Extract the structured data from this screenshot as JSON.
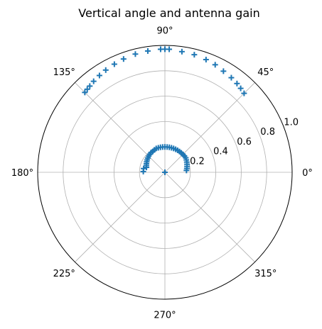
{
  "chart_data": {
    "type": "scatter",
    "projection": "polar",
    "title": "Vertical angle and antenna gain",
    "marker": "plus",
    "color": "#1f77b4",
    "grid": true,
    "angle_unit": "degrees",
    "angle_ticks": [
      "0°",
      "45°",
      "90°",
      "135°",
      "180°",
      "225°",
      "270°",
      "315°"
    ],
    "angle_tick_values": [
      0,
      45,
      90,
      135,
      180,
      225,
      270,
      315
    ],
    "radial_ticks": [
      "0.2",
      "0.4",
      "0.6",
      "0.8",
      "1.0"
    ],
    "radial_tick_values": [
      0.2,
      0.4,
      0.6,
      0.8,
      1.0
    ],
    "rlim": [
      0,
      1.0
    ],
    "series": [
      {
        "points": [
          {
            "theta": 45,
            "r": 0.88
          },
          {
            "theta": 48,
            "r": 0.89
          },
          {
            "theta": 51,
            "r": 0.9
          },
          {
            "theta": 55,
            "r": 0.91
          },
          {
            "theta": 60,
            "r": 0.92
          },
          {
            "theta": 65,
            "r": 0.935
          },
          {
            "theta": 70,
            "r": 0.945
          },
          {
            "theta": 76,
            "r": 0.955
          },
          {
            "theta": 82,
            "r": 0.96
          },
          {
            "theta": 88,
            "r": 0.97
          },
          {
            "theta": 90,
            "r": 0.97
          },
          {
            "theta": 92,
            "r": 0.97
          },
          {
            "theta": 98,
            "r": 0.965
          },
          {
            "theta": 104,
            "r": 0.96
          },
          {
            "theta": 110,
            "r": 0.95
          },
          {
            "theta": 115,
            "r": 0.94
          },
          {
            "theta": 120,
            "r": 0.93
          },
          {
            "theta": 124,
            "r": 0.92
          },
          {
            "theta": 128,
            "r": 0.91
          },
          {
            "theta": 131,
            "r": 0.9
          },
          {
            "theta": 133,
            "r": 0.895
          },
          {
            "theta": 135,
            "r": 0.89
          },
          {
            "theta": 5,
            "r": 0.17
          },
          {
            "theta": 10,
            "r": 0.175
          },
          {
            "theta": 15,
            "r": 0.18
          },
          {
            "theta": 20,
            "r": 0.185
          },
          {
            "theta": 25,
            "r": 0.19
          },
          {
            "theta": 30,
            "r": 0.195
          },
          {
            "theta": 35,
            "r": 0.2
          },
          {
            "theta": 40,
            "r": 0.2
          },
          {
            "theta": 45,
            "r": 0.2
          },
          {
            "theta": 50,
            "r": 0.2
          },
          {
            "theta": 55,
            "r": 0.2
          },
          {
            "theta": 60,
            "r": 0.2
          },
          {
            "theta": 65,
            "r": 0.2
          },
          {
            "theta": 70,
            "r": 0.2
          },
          {
            "theta": 75,
            "r": 0.2
          },
          {
            "theta": 80,
            "r": 0.2
          },
          {
            "theta": 85,
            "r": 0.2
          },
          {
            "theta": 90,
            "r": 0.2
          },
          {
            "theta": 95,
            "r": 0.2
          },
          {
            "theta": 100,
            "r": 0.2
          },
          {
            "theta": 105,
            "r": 0.2
          },
          {
            "theta": 110,
            "r": 0.2
          },
          {
            "theta": 115,
            "r": 0.195
          },
          {
            "theta": 120,
            "r": 0.19
          },
          {
            "theta": 125,
            "r": 0.19
          },
          {
            "theta": 130,
            "r": 0.185
          },
          {
            "theta": 135,
            "r": 0.18
          },
          {
            "theta": 140,
            "r": 0.175
          },
          {
            "theta": 145,
            "r": 0.17
          },
          {
            "theta": 150,
            "r": 0.165
          },
          {
            "theta": 155,
            "r": 0.16
          },
          {
            "theta": 160,
            "r": 0.155
          },
          {
            "theta": 165,
            "r": 0.15
          },
          {
            "theta": 170,
            "r": 0.17
          },
          {
            "theta": 178,
            "r": 0.17
          },
          {
            "theta": 0,
            "r": 0.0
          }
        ]
      }
    ]
  }
}
